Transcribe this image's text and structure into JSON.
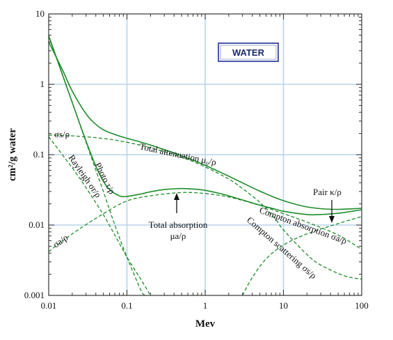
{
  "chart_data": {
    "type": "line",
    "xscale": "log",
    "yscale": "log",
    "xlim": [
      0.01,
      100
    ],
    "ylim": [
      0.001,
      10
    ],
    "x_ticks": [
      "0.01",
      "0.1",
      "1",
      "10",
      "100"
    ],
    "y_ticks": [
      "10",
      "1",
      "0.1",
      "0.01",
      "0.001"
    ],
    "xlabel": "Mev",
    "ylabel": "cm²/g water",
    "badge": "WATER",
    "grid": true,
    "colors": {
      "curve": "#1e8c2a",
      "grid": "#b8d4ec",
      "badge_border": "#4a58a8"
    },
    "series": [
      {
        "key": "total_attenuation",
        "style": "solid",
        "points": [
          [
            0.01,
            4.0
          ],
          [
            0.015,
            1.6
          ],
          [
            0.02,
            0.8
          ],
          [
            0.03,
            0.38
          ],
          [
            0.04,
            0.27
          ],
          [
            0.05,
            0.226
          ],
          [
            0.06,
            0.206
          ],
          [
            0.08,
            0.184
          ],
          [
            0.1,
            0.171
          ],
          [
            0.15,
            0.151
          ],
          [
            0.2,
            0.137
          ],
          [
            0.3,
            0.118
          ],
          [
            0.5,
            0.0967
          ],
          [
            0.8,
            0.0786
          ],
          [
            1,
            0.0707
          ],
          [
            1.5,
            0.0575
          ],
          [
            2,
            0.0494
          ],
          [
            3,
            0.0397
          ],
          [
            5,
            0.0303
          ],
          [
            8,
            0.0243
          ],
          [
            10,
            0.0222
          ],
          [
            15,
            0.0194
          ],
          [
            20,
            0.0181
          ],
          [
            30,
            0.0171
          ],
          [
            50,
            0.0167
          ],
          [
            100,
            0.0173
          ]
        ]
      },
      {
        "key": "total_absorption",
        "style": "solid",
        "points": [
          [
            0.01,
            4.9
          ],
          [
            0.015,
            1.37
          ],
          [
            0.02,
            0.55
          ],
          [
            0.03,
            0.156
          ],
          [
            0.04,
            0.069
          ],
          [
            0.05,
            0.042
          ],
          [
            0.06,
            0.032
          ],
          [
            0.08,
            0.026
          ],
          [
            0.1,
            0.0255
          ],
          [
            0.15,
            0.0276
          ],
          [
            0.2,
            0.0297
          ],
          [
            0.3,
            0.0319
          ],
          [
            0.5,
            0.033
          ],
          [
            0.8,
            0.0321
          ],
          [
            1,
            0.0311
          ],
          [
            1.5,
            0.0283
          ],
          [
            2,
            0.026
          ],
          [
            3,
            0.0227
          ],
          [
            5,
            0.0192
          ],
          [
            8,
            0.0167
          ],
          [
            10,
            0.0157
          ],
          [
            20,
            0.0141
          ],
          [
            30,
            0.0141
          ],
          [
            50,
            0.0147
          ],
          [
            100,
            0.0165
          ]
        ]
      },
      {
        "key": "compton_scattering",
        "style": "dashed",
        "points": [
          [
            0.01,
            0.19
          ],
          [
            0.02,
            0.185
          ],
          [
            0.05,
            0.17
          ],
          [
            0.1,
            0.15
          ],
          [
            0.2,
            0.125
          ],
          [
            0.5,
            0.092
          ],
          [
            1,
            0.067
          ],
          [
            2,
            0.045
          ],
          [
            3,
            0.033
          ],
          [
            5,
            0.021
          ],
          [
            8,
            0.012
          ],
          [
            10,
            0.0085
          ],
          [
            20,
            0.0038
          ],
          [
            30,
            0.0027
          ],
          [
            60,
            0.0019
          ],
          [
            100,
            0.0017
          ]
        ]
      },
      {
        "key": "compton_absorption",
        "style": "dashed",
        "points": [
          [
            0.01,
            0.0042
          ],
          [
            0.02,
            0.0075
          ],
          [
            0.05,
            0.0145
          ],
          [
            0.1,
            0.022
          ],
          [
            0.2,
            0.026
          ],
          [
            0.5,
            0.029
          ],
          [
            1,
            0.028
          ],
          [
            2,
            0.025
          ],
          [
            5,
            0.019
          ],
          [
            10,
            0.0145
          ],
          [
            20,
            0.011
          ],
          [
            50,
            0.0072
          ],
          [
            100,
            0.0045
          ]
        ]
      },
      {
        "key": "photo",
        "style": "dashed",
        "points": [
          [
            0.01,
            4.8
          ],
          [
            0.02,
            0.55
          ],
          [
            0.03,
            0.15
          ],
          [
            0.05,
            0.03
          ],
          [
            0.07,
            0.01
          ],
          [
            0.1,
            0.0035
          ],
          [
            0.15,
            0.0012
          ],
          [
            0.17,
            0.001
          ]
        ]
      },
      {
        "key": "rayleigh",
        "style": "dashed",
        "points": [
          [
            0.01,
            0.18
          ],
          [
            0.02,
            0.065
          ],
          [
            0.03,
            0.034
          ],
          [
            0.05,
            0.014
          ],
          [
            0.08,
            0.0055
          ],
          [
            0.1,
            0.0035
          ],
          [
            0.15,
            0.0017
          ],
          [
            0.2,
            0.001
          ]
        ]
      },
      {
        "key": "pair",
        "style": "dashed",
        "points": [
          [
            3,
            0.001
          ],
          [
            4,
            0.0018
          ],
          [
            6,
            0.0033
          ],
          [
            10,
            0.0052
          ],
          [
            20,
            0.0075
          ],
          [
            50,
            0.0105
          ],
          [
            100,
            0.0132
          ]
        ]
      }
    ],
    "annotations": {
      "total_attenuation": "Total attenuation μ₀/ρ",
      "sigma_s": "σs/ρ",
      "rayleigh": "Rayleigh σr/ρ",
      "photo": "Photo τ/ρ",
      "sigma_a": "σa/ρ",
      "total_absorption_line1": "Total absorption",
      "total_absorption_line2": "μa/ρ",
      "pair": "Pair κ/ρ",
      "compton_absorption": "Compton absorption σa/ρ",
      "compton_scattering": "Compton scattering σs/ρ"
    }
  }
}
